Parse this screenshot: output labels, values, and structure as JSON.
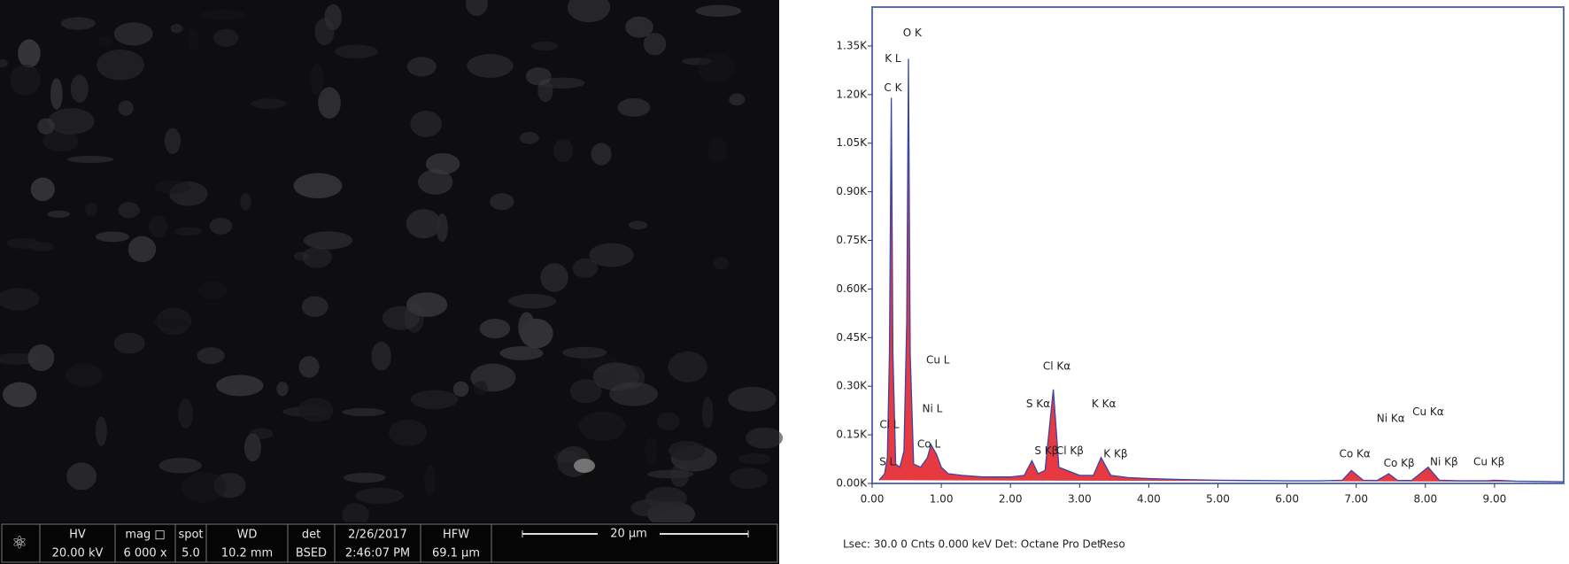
{
  "sem_image": {
    "info": [
      {
        "label": "HV",
        "value": "20.00 kV"
      },
      {
        "label": "mag □",
        "value": "6 000 x"
      },
      {
        "label": "spot",
        "value": "5.0"
      },
      {
        "label": "WD",
        "value": "10.2 mm"
      },
      {
        "label": "det",
        "value": "BSED"
      },
      {
        "label": "2/26/2017",
        "value": "2:46:07 PM"
      },
      {
        "label": "HFW",
        "value": "69.1 µm"
      }
    ],
    "scale_bar": "20 µm"
  },
  "chart_data": {
    "type": "area",
    "footer": "Lsec: 30.0 0 Cnts  0.000 keV Det: Octane Pro Det",
    "footer_right": "Reso",
    "x": [
      0.1,
      0.18,
      0.22,
      0.25,
      0.277,
      0.3,
      0.34,
      0.4,
      0.46,
      0.5,
      0.525,
      0.55,
      0.6,
      0.7,
      0.8,
      0.85,
      0.93,
      1.0,
      1.1,
      1.3,
      1.6,
      2.0,
      2.2,
      2.31,
      2.4,
      2.5,
      2.62,
      2.7,
      2.82,
      3.0,
      3.2,
      3.31,
      3.45,
      3.7,
      4.0,
      4.5,
      5.0,
      5.5,
      6.0,
      6.5,
      6.8,
      6.93,
      7.1,
      7.3,
      7.47,
      7.6,
      7.8,
      8.04,
      8.2,
      8.5,
      8.9,
      9.0,
      9.3,
      9.7,
      10.0
    ],
    "series": [
      {
        "color": "#e3242b",
        "line_color": "#3a45a8",
        "values": [
          0.01,
          0.03,
          0.08,
          0.4,
          1.19,
          0.4,
          0.06,
          0.05,
          0.1,
          0.5,
          1.31,
          0.4,
          0.06,
          0.05,
          0.08,
          0.12,
          0.09,
          0.05,
          0.03,
          0.025,
          0.02,
          0.02,
          0.025,
          0.07,
          0.03,
          0.04,
          0.29,
          0.05,
          0.04,
          0.025,
          0.025,
          0.08,
          0.025,
          0.018,
          0.015,
          0.012,
          0.01,
          0.009,
          0.008,
          0.008,
          0.01,
          0.04,
          0.01,
          0.009,
          0.03,
          0.009,
          0.009,
          0.05,
          0.01,
          0.008,
          0.008,
          0.01,
          0.007,
          0.006,
          0.005
        ]
      }
    ],
    "xlim": [
      0,
      10
    ],
    "ylim": [
      0,
      1.47
    ],
    "xticks": [
      {
        "value": 0,
        "label": "0.00"
      },
      {
        "value": 1,
        "label": "1.00"
      },
      {
        "value": 2,
        "label": "2.00"
      },
      {
        "value": 3,
        "label": "3.00"
      },
      {
        "value": 4,
        "label": "4.00"
      },
      {
        "value": 5,
        "label": "5.00"
      },
      {
        "value": 6,
        "label": "6.00"
      },
      {
        "value": 7,
        "label": "7.00"
      },
      {
        "value": 8,
        "label": "8.00"
      },
      {
        "value": 9,
        "label": "9.00"
      }
    ],
    "yticks": [
      {
        "value": 0,
        "label": "0.00K"
      },
      {
        "value": 0.15,
        "label": "0.15K"
      },
      {
        "value": 0.3,
        "label": "0.30K"
      },
      {
        "value": 0.45,
        "label": "0.45K"
      },
      {
        "value": 0.6,
        "label": "0.60K"
      },
      {
        "value": 0.75,
        "label": "0.75K"
      },
      {
        "value": 0.9,
        "label": "0.90K"
      },
      {
        "value": 1.05,
        "label": "1.05K"
      },
      {
        "value": 1.2,
        "label": "1.20K"
      },
      {
        "value": 1.35,
        "label": "1.35K"
      }
    ],
    "annotations": [
      {
        "text": "O K",
        "x": 0.58,
        "y": 1.39
      },
      {
        "text": "K L",
        "x": 0.3,
        "y": 1.31
      },
      {
        "text": "C K",
        "x": 0.3,
        "y": 1.22
      },
      {
        "text": "Cl L",
        "x": 0.25,
        "y": 0.18
      },
      {
        "text": "S L",
        "x": 0.22,
        "y": 0.065
      },
      {
        "text": "Cu L",
        "x": 0.95,
        "y": 0.38
      },
      {
        "text": "Ni L",
        "x": 0.87,
        "y": 0.23
      },
      {
        "text": "Co L",
        "x": 0.82,
        "y": 0.12
      },
      {
        "text": "Cl Kα",
        "x": 2.67,
        "y": 0.36
      },
      {
        "text": "S  Kα",
        "x": 2.4,
        "y": 0.245
      },
      {
        "text": "K  Kα",
        "x": 3.35,
        "y": 0.245
      },
      {
        "text": "S  Kβ",
        "x": 2.52,
        "y": 0.1
      },
      {
        "text": "Cl Kβ",
        "x": 2.86,
        "y": 0.1
      },
      {
        "text": "K  Kβ",
        "x": 3.52,
        "y": 0.09
      },
      {
        "text": "Co Kα",
        "x": 6.98,
        "y": 0.09
      },
      {
        "text": "Ni Kα",
        "x": 7.5,
        "y": 0.2
      },
      {
        "text": "Cu Kα",
        "x": 8.04,
        "y": 0.22
      },
      {
        "text": "Co Kβ",
        "x": 7.62,
        "y": 0.062
      },
      {
        "text": "Ni Kβ",
        "x": 8.27,
        "y": 0.065
      },
      {
        "text": "Cu Kβ",
        "x": 8.92,
        "y": 0.065
      }
    ]
  }
}
